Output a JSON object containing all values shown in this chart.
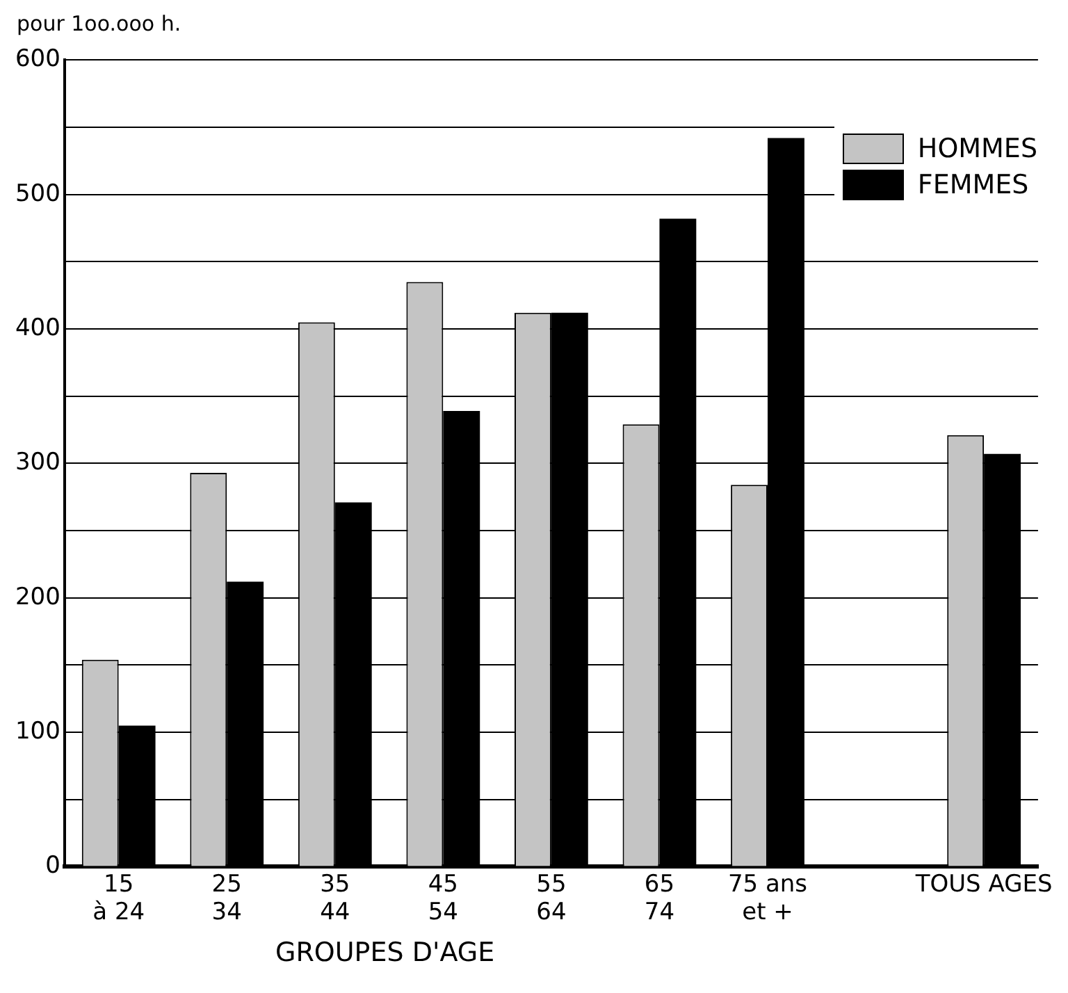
{
  "chart_data": {
    "type": "bar",
    "ylabel": "pour 1oo.ooo h.",
    "xlabel": "GROUPES D'AGE",
    "categories": [
      "15\nà 24",
      "25\n34",
      "35\n44",
      "45\n54",
      "55\n64",
      "65\n74",
      "75 ans\net +",
      null,
      "TOUS AGES"
    ],
    "series": [
      {
        "name": "HOMMES",
        "color": "#c4c4c4",
        "values": [
          154,
          293,
          405,
          435,
          412,
          329,
          284,
          null,
          321
        ]
      },
      {
        "name": "FEMMES",
        "color": "#000000",
        "values": [
          105,
          212,
          271,
          339,
          412,
          482,
          542,
          null,
          307
        ]
      }
    ],
    "ylim": [
      0,
      600
    ],
    "yticks": [
      0,
      {
        "value": 50,
        "label": null
      },
      100,
      {
        "value": 150,
        "label": null
      },
      200,
      {
        "value": 250,
        "label": null
      },
      300,
      {
        "value": 350,
        "label": null
      },
      400,
      {
        "value": 450,
        "label": null
      },
      500,
      {
        "value": 550,
        "label": null
      },
      600
    ],
    "grid": "y",
    "legend": "top right"
  }
}
